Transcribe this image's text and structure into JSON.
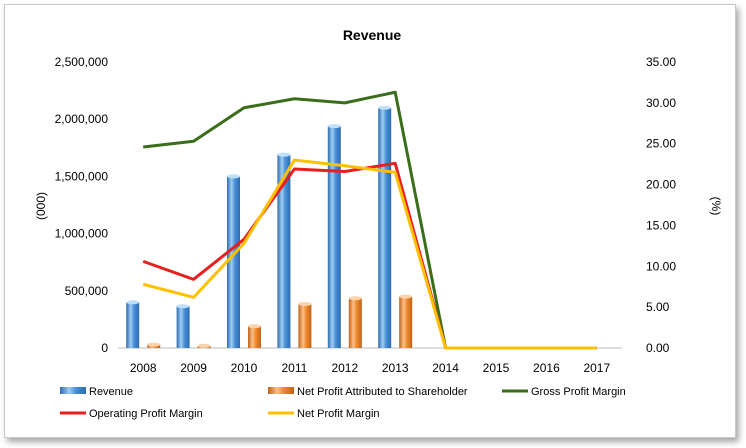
{
  "chart_data": {
    "type": "bar",
    "title": "Revenue",
    "categories": [
      "2008",
      "2009",
      "2010",
      "2011",
      "2012",
      "2013",
      "2014",
      "2015",
      "2016",
      "2017"
    ],
    "ylabel": "(000)",
    "y2label": "(%)",
    "ylim": [
      0,
      2500000
    ],
    "y2lim": [
      0,
      35
    ],
    "yticks": [
      "0",
      "500,000",
      "1,000,000",
      "1,500,000",
      "2,000,000",
      "2,500,000"
    ],
    "y2ticks": [
      "0.00",
      "5.00",
      "10.00",
      "15.00",
      "20.00",
      "25.00",
      "30.00",
      "35.00"
    ],
    "legend_position": "bottom",
    "series": [
      {
        "name": "Revenue",
        "kind": "bar",
        "axis": "left",
        "color": "#4a90d9",
        "values": [
          400000,
          365000,
          1500000,
          1690000,
          1940000,
          2100000,
          0,
          0,
          0,
          0
        ]
      },
      {
        "name": "Net Profit Attributed to Shareholder",
        "kind": "bar",
        "axis": "left",
        "color": "#f08a2c",
        "values": [
          30000,
          20000,
          190000,
          385000,
          435000,
          450000,
          0,
          0,
          0,
          0
        ]
      },
      {
        "name": "Gross Profit Margin",
        "kind": "line",
        "axis": "right",
        "color": "#3a6e1a",
        "values": [
          24.6,
          25.3,
          29.4,
          30.5,
          30.0,
          31.3,
          0,
          0,
          0,
          0
        ]
      },
      {
        "name": "Operating Profit Margin",
        "kind": "line",
        "axis": "right",
        "color": "#e81f1f",
        "values": [
          10.6,
          8.4,
          13.3,
          21.9,
          21.6,
          22.6,
          0,
          0,
          0,
          0
        ]
      },
      {
        "name": "Net Profit Margin",
        "kind": "line",
        "axis": "right",
        "color": "#ffc000",
        "values": [
          7.8,
          6.2,
          12.8,
          23.0,
          22.3,
          21.5,
          0,
          0,
          0,
          0
        ]
      }
    ]
  }
}
